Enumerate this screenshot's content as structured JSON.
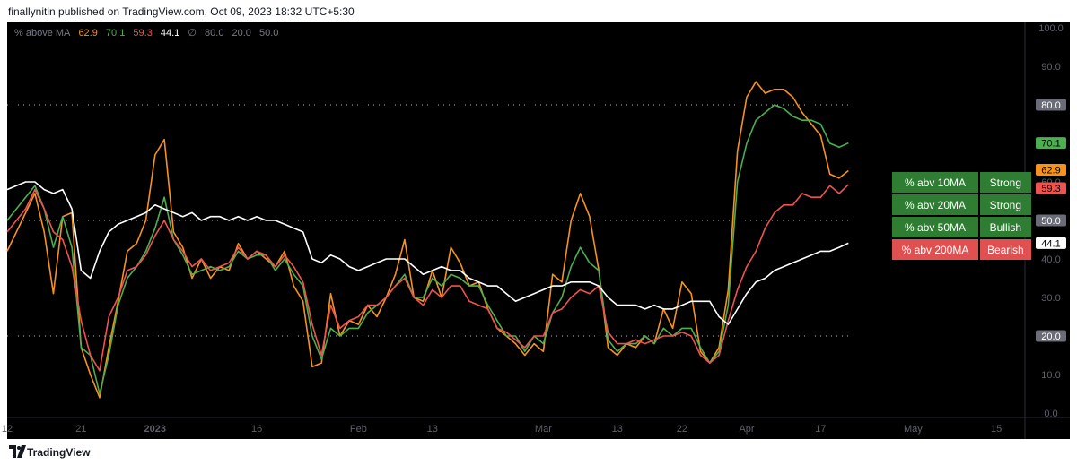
{
  "header": {
    "published": "finallynitin published on TradingView.com, Oct 09, 2023 18:32 UTC+5:30"
  },
  "legend": {
    "title": "% above MA",
    "values": [
      "62.9",
      "70.1",
      "59.3",
      "44.1"
    ],
    "sep": "∅",
    "levels": [
      "80.0",
      "20.0",
      "50.0"
    ]
  },
  "colors": {
    "ma10": "#f7931a",
    "ma20": "#4caf50",
    "ma50": "#ef5350",
    "ma200": "#ffffff",
    "background": "#000000",
    "grid": "#787b86"
  },
  "signals": [
    {
      "label": "% abv 10MA",
      "state": "Strong",
      "color": "green"
    },
    {
      "label": "% abv 20MA",
      "state": "Strong",
      "color": "green"
    },
    {
      "label": "% abv 50MA",
      "state": "Bullish",
      "color": "green"
    },
    {
      "label": "% abv 200MA",
      "state": "Bearish",
      "color": "red"
    }
  ],
  "footer": {
    "brand": "TradingView"
  },
  "chart_data": {
    "type": "line",
    "title": "% above MA",
    "ylim": [
      0,
      100
    ],
    "y_ticks": [
      "100.0",
      "90.0",
      "80.0",
      "70.0",
      "60.0",
      "50.0",
      "40.0",
      "30.0",
      "20.0",
      "10.0",
      "0.0"
    ],
    "x_ticks": [
      "12",
      "21",
      "2023",
      "16",
      "Feb",
      "13",
      "Mar",
      "13",
      "22",
      "Apr",
      "17",
      "May",
      "15"
    ],
    "x_tick_idx": [
      0,
      8,
      16,
      27,
      38,
      46,
      58,
      66,
      73,
      80,
      88,
      98,
      107
    ],
    "reference_lines": [
      80,
      50,
      20
    ],
    "price_labels": [
      {
        "text": "80.0",
        "value": 80,
        "style": "level"
      },
      {
        "text": "70.1",
        "value": 70.1,
        "style": "ma20"
      },
      {
        "text": "62.9",
        "value": 62.9,
        "style": "ma10"
      },
      {
        "text": "59.3",
        "value": 59.3,
        "style": "ma50"
      },
      {
        "text": "50.0",
        "value": 50,
        "style": "level"
      },
      {
        "text": "44.1",
        "value": 44.1,
        "style": "ma200"
      },
      {
        "text": "20.0",
        "value": 20,
        "style": "level"
      }
    ],
    "series": [
      {
        "name": "10MA",
        "color": "#f7931a",
        "values": [
          42,
          47,
          52,
          57,
          47,
          31,
          51,
          52,
          17,
          10,
          4,
          17,
          29,
          42,
          44,
          50,
          67,
          71,
          47,
          43,
          35,
          40,
          35,
          38,
          37,
          44,
          40,
          42,
          40,
          38,
          42,
          33,
          29,
          12,
          13,
          31,
          20,
          24,
          23,
          28,
          25,
          30,
          36,
          45,
          30,
          29,
          37,
          30,
          43,
          39,
          33,
          34,
          27,
          22,
          20,
          18,
          15,
          18,
          16,
          36,
          34,
          50,
          57,
          51,
          37,
          17,
          15,
          18,
          17,
          20,
          18,
          27,
          22,
          34,
          31,
          16,
          13,
          17,
          32,
          68,
          82,
          86,
          83,
          84,
          84,
          82,
          78,
          75,
          72,
          62,
          61,
          62.9
        ]
      },
      {
        "name": "20MA",
        "color": "#4caf50",
        "values": [
          50,
          53,
          56,
          59,
          53,
          43,
          51,
          43,
          17,
          15,
          5,
          15,
          28,
          35,
          38,
          42,
          48,
          56,
          45,
          41,
          36,
          37,
          38,
          37,
          38,
          42,
          40,
          41,
          41,
          37,
          40,
          36,
          33,
          20,
          14,
          22,
          20,
          22,
          22,
          26,
          28,
          30,
          33,
          36,
          30,
          30,
          35,
          33,
          36,
          35,
          33,
          33,
          28,
          24,
          20,
          20,
          16,
          20,
          18,
          26,
          30,
          38,
          43,
          39,
          37,
          19,
          16,
          18,
          18,
          20,
          18,
          22,
          20,
          22,
          22,
          17,
          13,
          16,
          28,
          60,
          70,
          76,
          78,
          80,
          79,
          77,
          76,
          76,
          75,
          70,
          69,
          70.1
        ]
      },
      {
        "name": "50MA",
        "color": "#ef5350",
        "values": [
          47,
          50,
          53,
          58,
          53,
          47,
          45,
          38,
          24,
          15,
          11,
          25,
          30,
          37,
          38,
          41,
          46,
          50,
          45,
          42,
          38,
          40,
          37,
          38,
          39,
          43,
          40,
          42,
          41,
          38,
          41,
          38,
          34,
          23,
          15,
          28,
          22,
          24,
          25,
          28,
          28,
          30,
          33,
          35,
          30,
          28,
          32,
          30,
          33,
          33,
          29,
          28,
          27,
          22,
          21,
          19,
          17,
          20,
          20,
          26,
          27,
          30,
          32,
          31,
          33,
          21,
          18,
          18,
          19,
          18,
          19,
          20,
          20,
          21,
          20,
          15,
          13,
          15,
          24,
          32,
          38,
          42,
          48,
          52,
          54,
          54,
          57,
          56,
          56,
          59,
          57,
          59.3
        ]
      },
      {
        "name": "200MA",
        "color": "#ffffff",
        "values": [
          58,
          59,
          60,
          60,
          58,
          57,
          58,
          53,
          37,
          35,
          42,
          47,
          49,
          50,
          51,
          52,
          54,
          53,
          52,
          51,
          52,
          50,
          51,
          51,
          50,
          51,
          50,
          51,
          50,
          50,
          49,
          48,
          47,
          40,
          39,
          41,
          40,
          38,
          37,
          38,
          39,
          40,
          40,
          40,
          38,
          36,
          37,
          38,
          37,
          37,
          35,
          34,
          33,
          33,
          31,
          29,
          30,
          31,
          32,
          33,
          33,
          34,
          34,
          34,
          33,
          30,
          28,
          28,
          28,
          27,
          28,
          27,
          27,
          28,
          29,
          29,
          29,
          25,
          23,
          27,
          31,
          34,
          35,
          37,
          38,
          39,
          40,
          41,
          42,
          42,
          43,
          44.1
        ]
      }
    ]
  }
}
